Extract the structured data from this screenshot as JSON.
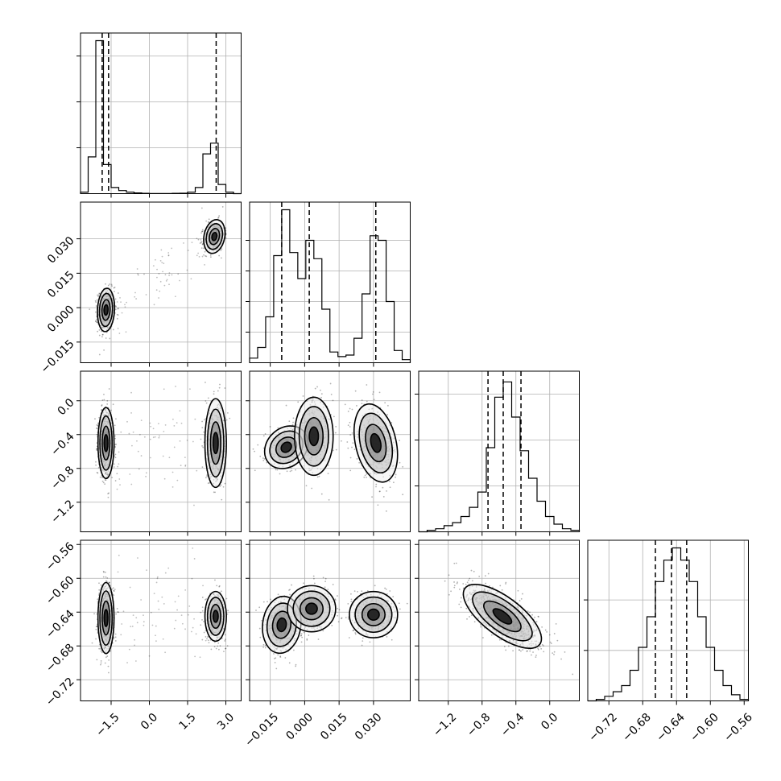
{
  "chart_data": {
    "type": "corner",
    "parameters": [
      {
        "range": [
          -2.7,
          3.6
        ],
        "ticks": [
          -1.5,
          0.0,
          1.5,
          3.0
        ],
        "tick_labels": [
          "−1.5",
          "0.0",
          "1.5",
          "3.0"
        ],
        "quantiles": [
          -1.85,
          -1.6,
          2.62
        ],
        "hist_bins": [
          [
            -2.7,
            0.01
          ],
          [
            -2.4,
            0.24
          ],
          [
            -2.1,
            1.0
          ],
          [
            -1.8,
            0.19
          ],
          [
            -1.5,
            0.04
          ],
          [
            -1.2,
            0.02
          ],
          [
            -0.9,
            0.01
          ],
          [
            -0.6,
            0.005
          ],
          [
            -0.3,
            0.002
          ],
          [
            0.0,
            0.001
          ],
          [
            0.3,
            0.001
          ],
          [
            0.6,
            0.001
          ],
          [
            0.9,
            0.002
          ],
          [
            1.2,
            0.003
          ],
          [
            1.5,
            0.01
          ],
          [
            1.8,
            0.04
          ],
          [
            2.1,
            0.26
          ],
          [
            2.4,
            0.33
          ],
          [
            2.7,
            0.06
          ],
          [
            3.0,
            0.01
          ],
          [
            3.3,
            0.0
          ]
        ],
        "hist_ymax": 1.05,
        "hist_yticks": [
          0.3,
          0.6,
          0.9
        ]
      },
      {
        "range": [
          -0.024,
          0.046
        ],
        "ticks": [
          -0.015,
          0.0,
          0.015,
          0.03
        ],
        "tick_labels": [
          "−0.015",
          "0.000",
          "0.015",
          "0.030"
        ],
        "quantiles": [
          -0.01,
          0.002,
          0.031
        ],
        "hist_bins": [
          [
            -0.024,
            0.03
          ],
          [
            -0.0205,
            0.1
          ],
          [
            -0.017,
            0.3
          ],
          [
            -0.0135,
            0.7
          ],
          [
            -0.01,
            1.0
          ],
          [
            -0.0065,
            0.72
          ],
          [
            -0.003,
            0.55
          ],
          [
            0.0005,
            0.8
          ],
          [
            0.004,
            0.68
          ],
          [
            0.0075,
            0.35
          ],
          [
            0.011,
            0.07
          ],
          [
            0.0145,
            0.04
          ],
          [
            0.018,
            0.05
          ],
          [
            0.0215,
            0.16
          ],
          [
            0.025,
            0.45
          ],
          [
            0.0285,
            0.83
          ],
          [
            0.032,
            0.8
          ],
          [
            0.0355,
            0.4
          ],
          [
            0.039,
            0.08
          ],
          [
            0.0425,
            0.02
          ]
        ],
        "hist_ymax": 1.05,
        "hist_yticks": [
          0.2,
          0.4,
          0.6,
          0.8
        ]
      },
      {
        "range": [
          -1.55,
          0.35
        ],
        "ticks": [
          -1.2,
          -0.8,
          -0.4,
          0.0
        ],
        "tick_labels": [
          "−1.2",
          "−0.8",
          "−0.4",
          "0.0"
        ],
        "quantiles": [
          -0.73,
          -0.55,
          -0.34
        ],
        "hist_bins": [
          [
            -1.55,
            0.0
          ],
          [
            -1.45,
            0.01
          ],
          [
            -1.35,
            0.02
          ],
          [
            -1.25,
            0.04
          ],
          [
            -1.15,
            0.06
          ],
          [
            -1.05,
            0.1
          ],
          [
            -0.95,
            0.16
          ],
          [
            -0.85,
            0.26
          ],
          [
            -0.75,
            0.55
          ],
          [
            -0.65,
            0.88
          ],
          [
            -0.55,
            0.98
          ],
          [
            -0.45,
            0.75
          ],
          [
            -0.35,
            0.53
          ],
          [
            -0.25,
            0.35
          ],
          [
            -0.15,
            0.2
          ],
          [
            -0.05,
            0.1
          ],
          [
            0.05,
            0.05
          ],
          [
            0.15,
            0.02
          ],
          [
            0.25,
            0.01
          ]
        ],
        "hist_ymax": 1.05,
        "hist_yticks": [
          0.3,
          0.6,
          0.9
        ]
      },
      {
        "range": [
          -0.745,
          -0.555
        ],
        "ticks": [
          -0.72,
          -0.68,
          -0.64,
          -0.6,
          -0.56
        ],
        "tick_labels": [
          "−0.72",
          "−0.68",
          "−0.64",
          "−0.60",
          "−0.56"
        ],
        "quantiles": [
          -0.665,
          -0.646,
          -0.628
        ],
        "hist_bins": [
          [
            -0.745,
            0.0
          ],
          [
            -0.735,
            0.01
          ],
          [
            -0.725,
            0.03
          ],
          [
            -0.715,
            0.06
          ],
          [
            -0.705,
            0.1
          ],
          [
            -0.695,
            0.2
          ],
          [
            -0.685,
            0.35
          ],
          [
            -0.675,
            0.55
          ],
          [
            -0.665,
            0.78
          ],
          [
            -0.655,
            0.92
          ],
          [
            -0.645,
            1.0
          ],
          [
            -0.635,
            0.92
          ],
          [
            -0.625,
            0.78
          ],
          [
            -0.615,
            0.55
          ],
          [
            -0.605,
            0.35
          ],
          [
            -0.595,
            0.2
          ],
          [
            -0.585,
            0.1
          ],
          [
            -0.575,
            0.04
          ],
          [
            -0.565,
            0.01
          ]
        ],
        "hist_ymax": 1.05,
        "hist_yticks": [
          0.33,
          0.66
        ]
      }
    ],
    "joint_modes": {
      "1_0": [
        {
          "mx": -1.7,
          "my": -0.001,
          "sx": 0.16,
          "sy": 0.0045,
          "rho": 0.1,
          "w": 0.62
        },
        {
          "mx": 2.55,
          "my": 0.031,
          "sx": 0.2,
          "sy": 0.0035,
          "rho": 0.2,
          "w": 0.38
        }
      ],
      "2_0": [
        {
          "mx": -1.7,
          "my": -0.5,
          "sx": 0.15,
          "sy": 0.2,
          "rho": 0.0,
          "w": 0.62
        },
        {
          "mx": 2.6,
          "my": -0.5,
          "sx": 0.2,
          "sy": 0.25,
          "rho": 0.0,
          "w": 0.38
        }
      ],
      "3_0": [
        {
          "mx": -1.7,
          "my": -0.647,
          "sx": 0.15,
          "sy": 0.02,
          "rho": 0.0,
          "w": 0.62
        },
        {
          "mx": 2.6,
          "my": -0.645,
          "sx": 0.2,
          "sy": 0.014,
          "rho": 0.0,
          "w": 0.38
        }
      ],
      "2_1": [
        {
          "mx": -0.008,
          "my": -0.55,
          "sx": 0.0045,
          "sy": 0.12,
          "rho": 0.2,
          "w": 0.34
        },
        {
          "mx": 0.004,
          "my": -0.42,
          "sx": 0.004,
          "sy": 0.22,
          "rho": 0.0,
          "w": 0.28
        },
        {
          "mx": 0.031,
          "my": -0.5,
          "sx": 0.0045,
          "sy": 0.22,
          "rho": -0.3,
          "w": 0.38
        }
      ],
      "3_1": [
        {
          "mx": -0.01,
          "my": -0.655,
          "sx": 0.004,
          "sy": 0.016,
          "rho": 0.1,
          "w": 0.34
        },
        {
          "mx": 0.003,
          "my": -0.636,
          "sx": 0.005,
          "sy": 0.013,
          "rho": 0.0,
          "w": 0.28
        },
        {
          "mx": 0.03,
          "my": -0.643,
          "sx": 0.005,
          "sy": 0.013,
          "rho": 0.0,
          "w": 0.38
        }
      ],
      "3_2": [
        {
          "mx": -0.56,
          "my": -0.645,
          "sx": 0.22,
          "sy": 0.018,
          "rho": -0.7,
          "w": 1.0
        }
      ]
    }
  }
}
